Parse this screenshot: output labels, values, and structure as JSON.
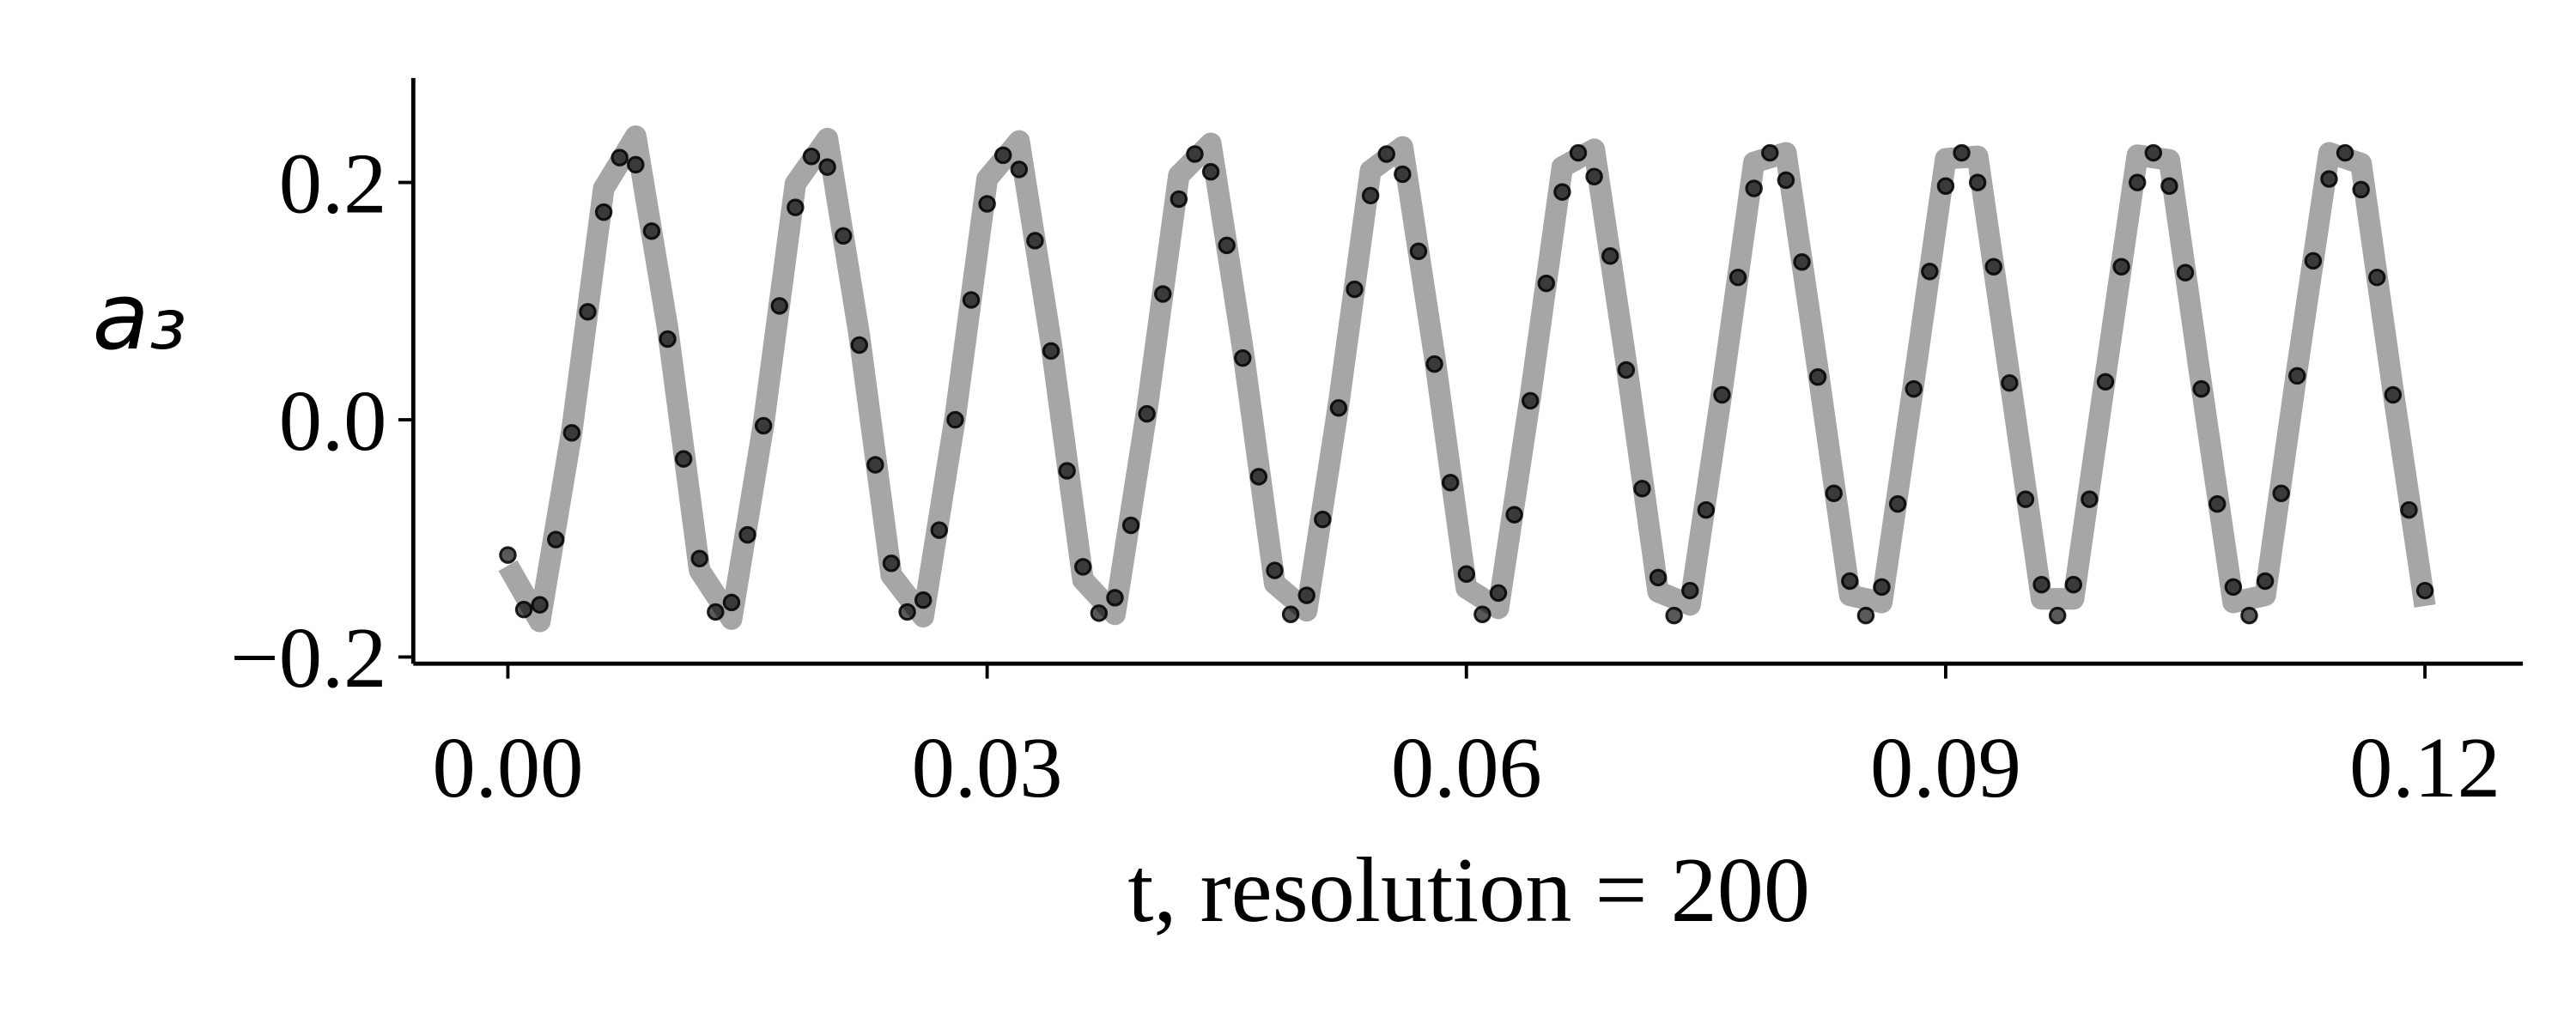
{
  "chart_data": {
    "type": "line+scatter",
    "xlabel": "t, resolution = 200",
    "ylabel": "a₃",
    "xlim": [
      -0.00592,
      0.12613
    ],
    "ylim": [
      -0.2056,
      0.2881
    ],
    "xticks": [
      {
        "value": 0,
        "label": "0.00"
      },
      {
        "value": 0.03,
        "label": "0.03"
      },
      {
        "value": 0.06,
        "label": "0.06"
      },
      {
        "value": 0.09,
        "label": "0.09"
      },
      {
        "value": 0.12,
        "label": "0.12"
      }
    ],
    "yticks": [
      {
        "value": -0.2,
        "label": "−0.2"
      },
      {
        "value": 0,
        "label": "0.0"
      },
      {
        "value": 0.2,
        "label": "0.2"
      }
    ],
    "series": [
      {
        "type": "line",
        "color": "#a6a6a6",
        "x": [
          0,
          0.002,
          0.004,
          0.006,
          0.008,
          0.01,
          0.012,
          0.014,
          0.016,
          0.018,
          0.02,
          0.022,
          0.024,
          0.026,
          0.028,
          0.03,
          0.032,
          0.034,
          0.036,
          0.038,
          0.04,
          0.042,
          0.044,
          0.046,
          0.048,
          0.05,
          0.052,
          0.054,
          0.056,
          0.058,
          0.06,
          0.062,
          0.064,
          0.066,
          0.068,
          0.07,
          0.072,
          0.074,
          0.076,
          0.078,
          0.08,
          0.082,
          0.084,
          0.086,
          0.088,
          0.09,
          0.092,
          0.094,
          0.096,
          0.098,
          0.1,
          0.102,
          0.104,
          0.106,
          0.108,
          0.11,
          0.112,
          0.114,
          0.116,
          0.118,
          0.12
        ],
        "values": [
          -0.123,
          -0.17,
          -0.01,
          0.195,
          0.239,
          0.077,
          -0.127,
          -0.168,
          -0.004,
          0.199,
          0.237,
          0.071,
          -0.131,
          -0.166,
          0.002,
          0.203,
          0.235,
          0.065,
          -0.135,
          -0.164,
          0.008,
          0.206,
          0.233,
          0.06,
          -0.138,
          -0.161,
          0.013,
          0.21,
          0.23,
          0.054,
          -0.142,
          -0.159,
          0.019,
          0.213,
          0.228,
          0.048,
          -0.145,
          -0.156,
          0.025,
          0.217,
          0.225,
          0.042,
          -0.148,
          -0.154,
          0.031,
          0.22,
          0.222,
          0.036,
          -0.151,
          -0.151,
          0.037,
          0.223,
          0.219,
          0.03,
          -0.154,
          -0.148,
          0.043,
          0.225,
          0.216,
          0.025,
          -0.157
        ]
      },
      {
        "type": "scatter",
        "color": "#000000",
        "x": [
          0,
          0.001,
          0.002,
          0.003,
          0.004,
          0.005,
          0.006,
          0.007,
          0.008,
          0.009,
          0.01,
          0.011,
          0.012,
          0.013,
          0.014,
          0.015,
          0.016,
          0.017,
          0.018,
          0.019,
          0.02,
          0.021,
          0.022,
          0.023,
          0.024,
          0.025,
          0.026,
          0.027,
          0.028,
          0.029,
          0.03,
          0.031,
          0.032,
          0.033,
          0.034,
          0.035,
          0.036,
          0.037,
          0.038,
          0.039,
          0.04,
          0.041,
          0.042,
          0.043,
          0.044,
          0.045,
          0.046,
          0.047,
          0.048,
          0.049,
          0.05,
          0.051,
          0.052,
          0.053,
          0.054,
          0.055,
          0.056,
          0.057,
          0.058,
          0.059,
          0.06,
          0.061,
          0.062,
          0.063,
          0.064,
          0.065,
          0.066,
          0.067,
          0.068,
          0.069,
          0.07,
          0.071,
          0.072,
          0.073,
          0.074,
          0.075,
          0.076,
          0.077,
          0.078,
          0.079,
          0.08,
          0.081,
          0.082,
          0.083,
          0.084,
          0.085,
          0.086,
          0.087,
          0.088,
          0.089,
          0.09,
          0.091,
          0.092,
          0.093,
          0.094,
          0.095,
          0.096,
          0.097,
          0.098,
          0.099,
          0.1,
          0.101,
          0.102,
          0.103,
          0.104,
          0.105,
          0.106,
          0.107,
          0.108,
          0.109,
          0.11,
          0.111,
          0.112,
          0.113,
          0.114,
          0.115,
          0.116,
          0.117,
          0.118,
          0.119,
          0.12
        ],
        "values": [
          -0.114,
          -0.16,
          -0.156,
          -0.101,
          -0.011,
          0.091,
          0.175,
          0.221,
          0.215,
          0.159,
          0.068,
          -0.033,
          -0.117,
          -0.162,
          -0.154,
          -0.097,
          -0.005,
          0.096,
          0.179,
          0.222,
          0.213,
          0.155,
          0.063,
          -0.038,
          -0.121,
          -0.162,
          -0.152,
          -0.093,
          0,
          0.101,
          0.182,
          0.223,
          0.211,
          0.151,
          0.058,
          -0.043,
          -0.124,
          -0.163,
          -0.15,
          -0.089,
          0.005,
          0.106,
          0.186,
          0.224,
          0.209,
          0.147,
          0.052,
          -0.048,
          -0.127,
          -0.164,
          -0.148,
          -0.084,
          0.01,
          0.11,
          0.189,
          0.224,
          0.207,
          0.142,
          0.047,
          -0.053,
          -0.13,
          -0.164,
          -0.146,
          -0.08,
          0.016,
          0.115,
          0.192,
          0.225,
          0.205,
          0.138,
          0.042,
          -0.058,
          -0.133,
          -0.165,
          -0.144,
          -0.076,
          0.021,
          0.12,
          0.195,
          0.225,
          0.202,
          0.133,
          0.036,
          -0.062,
          -0.136,
          -0.165,
          -0.141,
          -0.071,
          0.026,
          0.125,
          0.197,
          0.225,
          0.2,
          0.129,
          0.031,
          -0.067,
          -0.139,
          -0.165,
          -0.139,
          -0.067,
          0.032,
          0.129,
          0.2,
          0.225,
          0.197,
          0.124,
          0.026,
          -0.071,
          -0.141,
          -0.165,
          -0.136,
          -0.062,
          0.037,
          0.134,
          0.203,
          0.225,
          0.194,
          0.12,
          0.021,
          -0.076,
          -0.144
        ]
      }
    ]
  }
}
